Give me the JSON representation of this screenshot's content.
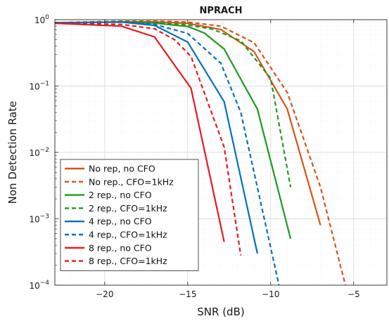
{
  "chart_data": {
    "type": "line",
    "title": "NPRACH",
    "xlabel": "SNR (dB)",
    "ylabel": "Non Detection Rate",
    "xlim": [
      -23,
      -3
    ],
    "ylim": [
      0.0001,
      1
    ],
    "yscale": "log",
    "grid": true,
    "legend_position": "bottom-left",
    "x_ticks": [
      -20,
      -15,
      -10,
      -5
    ],
    "x_tick_labels": [
      "−20",
      "−15",
      "−10",
      "−5"
    ],
    "y_ticks": [
      1,
      0.1,
      0.01,
      0.001,
      0.0001
    ],
    "y_tick_labels": [
      {
        "base": "10",
        "exp": "0"
      },
      {
        "base": "10",
        "exp": "−1"
      },
      {
        "base": "10",
        "exp": "−2"
      },
      {
        "base": "10",
        "exp": "−3"
      },
      {
        "base": "10",
        "exp": "−4"
      }
    ],
    "series": [
      {
        "name": "No rep, no CFO",
        "color": "#d95319",
        "dash": "solid",
        "x": [
          -23,
          -19,
          -17,
          -15,
          -13,
          -11,
          -9,
          -7
        ],
        "y": [
          0.88,
          0.93,
          0.93,
          0.88,
          0.71,
          0.33,
          0.045,
          0.0008
        ]
      },
      {
        "name": "No rep., CFO=1kHz",
        "color": "#d95319",
        "dash": "dashed",
        "x": [
          -23,
          -19,
          -17,
          -15,
          -13,
          -11,
          -9,
          -7,
          -5.5
        ],
        "y": [
          0.9,
          0.95,
          0.95,
          0.92,
          0.8,
          0.45,
          0.08,
          0.003,
          0.0001
        ]
      },
      {
        "name": "2 rep., no CFO",
        "color": "#1e9a1e",
        "dash": "solid",
        "x": [
          -23,
          -19,
          -17,
          -15,
          -14,
          -12.8,
          -10.8,
          -8.8
        ],
        "y": [
          0.9,
          0.92,
          0.89,
          0.79,
          0.63,
          0.36,
          0.045,
          0.0005
        ]
      },
      {
        "name": "2 rep., CFO=1kHz",
        "color": "#1e9a1e",
        "dash": "dashed",
        "x": [
          -23,
          -19,
          -17,
          -15,
          -13.5,
          -11.8,
          -10,
          -8.8
        ],
        "y": [
          0.9,
          0.93,
          0.91,
          0.83,
          0.72,
          0.48,
          0.13,
          0.003
        ]
      },
      {
        "name": "4 rep., no CFO",
        "color": "#0072bd",
        "dash": "solid",
        "x": [
          -23,
          -19,
          -17,
          -15,
          -12.8,
          -10.8
        ],
        "y": [
          0.9,
          0.92,
          0.82,
          0.46,
          0.058,
          0.0003
        ]
      },
      {
        "name": "4 rep., CFO=1kHz",
        "color": "#0072bd",
        "dash": "dashed",
        "x": [
          -23,
          -19,
          -17,
          -15,
          -13,
          -11.8,
          -9.5
        ],
        "y": [
          0.9,
          0.92,
          0.85,
          0.62,
          0.22,
          0.04,
          0.0001
        ]
      },
      {
        "name": "8 rep., no CFO",
        "color": "#e8191f",
        "dash": "solid",
        "x": [
          -23,
          -19,
          -17,
          -14.8,
          -12.8
        ],
        "y": [
          0.88,
          0.8,
          0.55,
          0.093,
          0.00045
        ]
      },
      {
        "name": "8  rep., CFO=1kHz",
        "color": "#e8191f",
        "dash": "dashed",
        "x": [
          -23,
          -19,
          -17,
          -15.8,
          -14.8,
          -12.8,
          -11.8
        ],
        "y": [
          0.88,
          0.85,
          0.73,
          0.5,
          0.28,
          0.012,
          0.00028
        ]
      }
    ]
  }
}
